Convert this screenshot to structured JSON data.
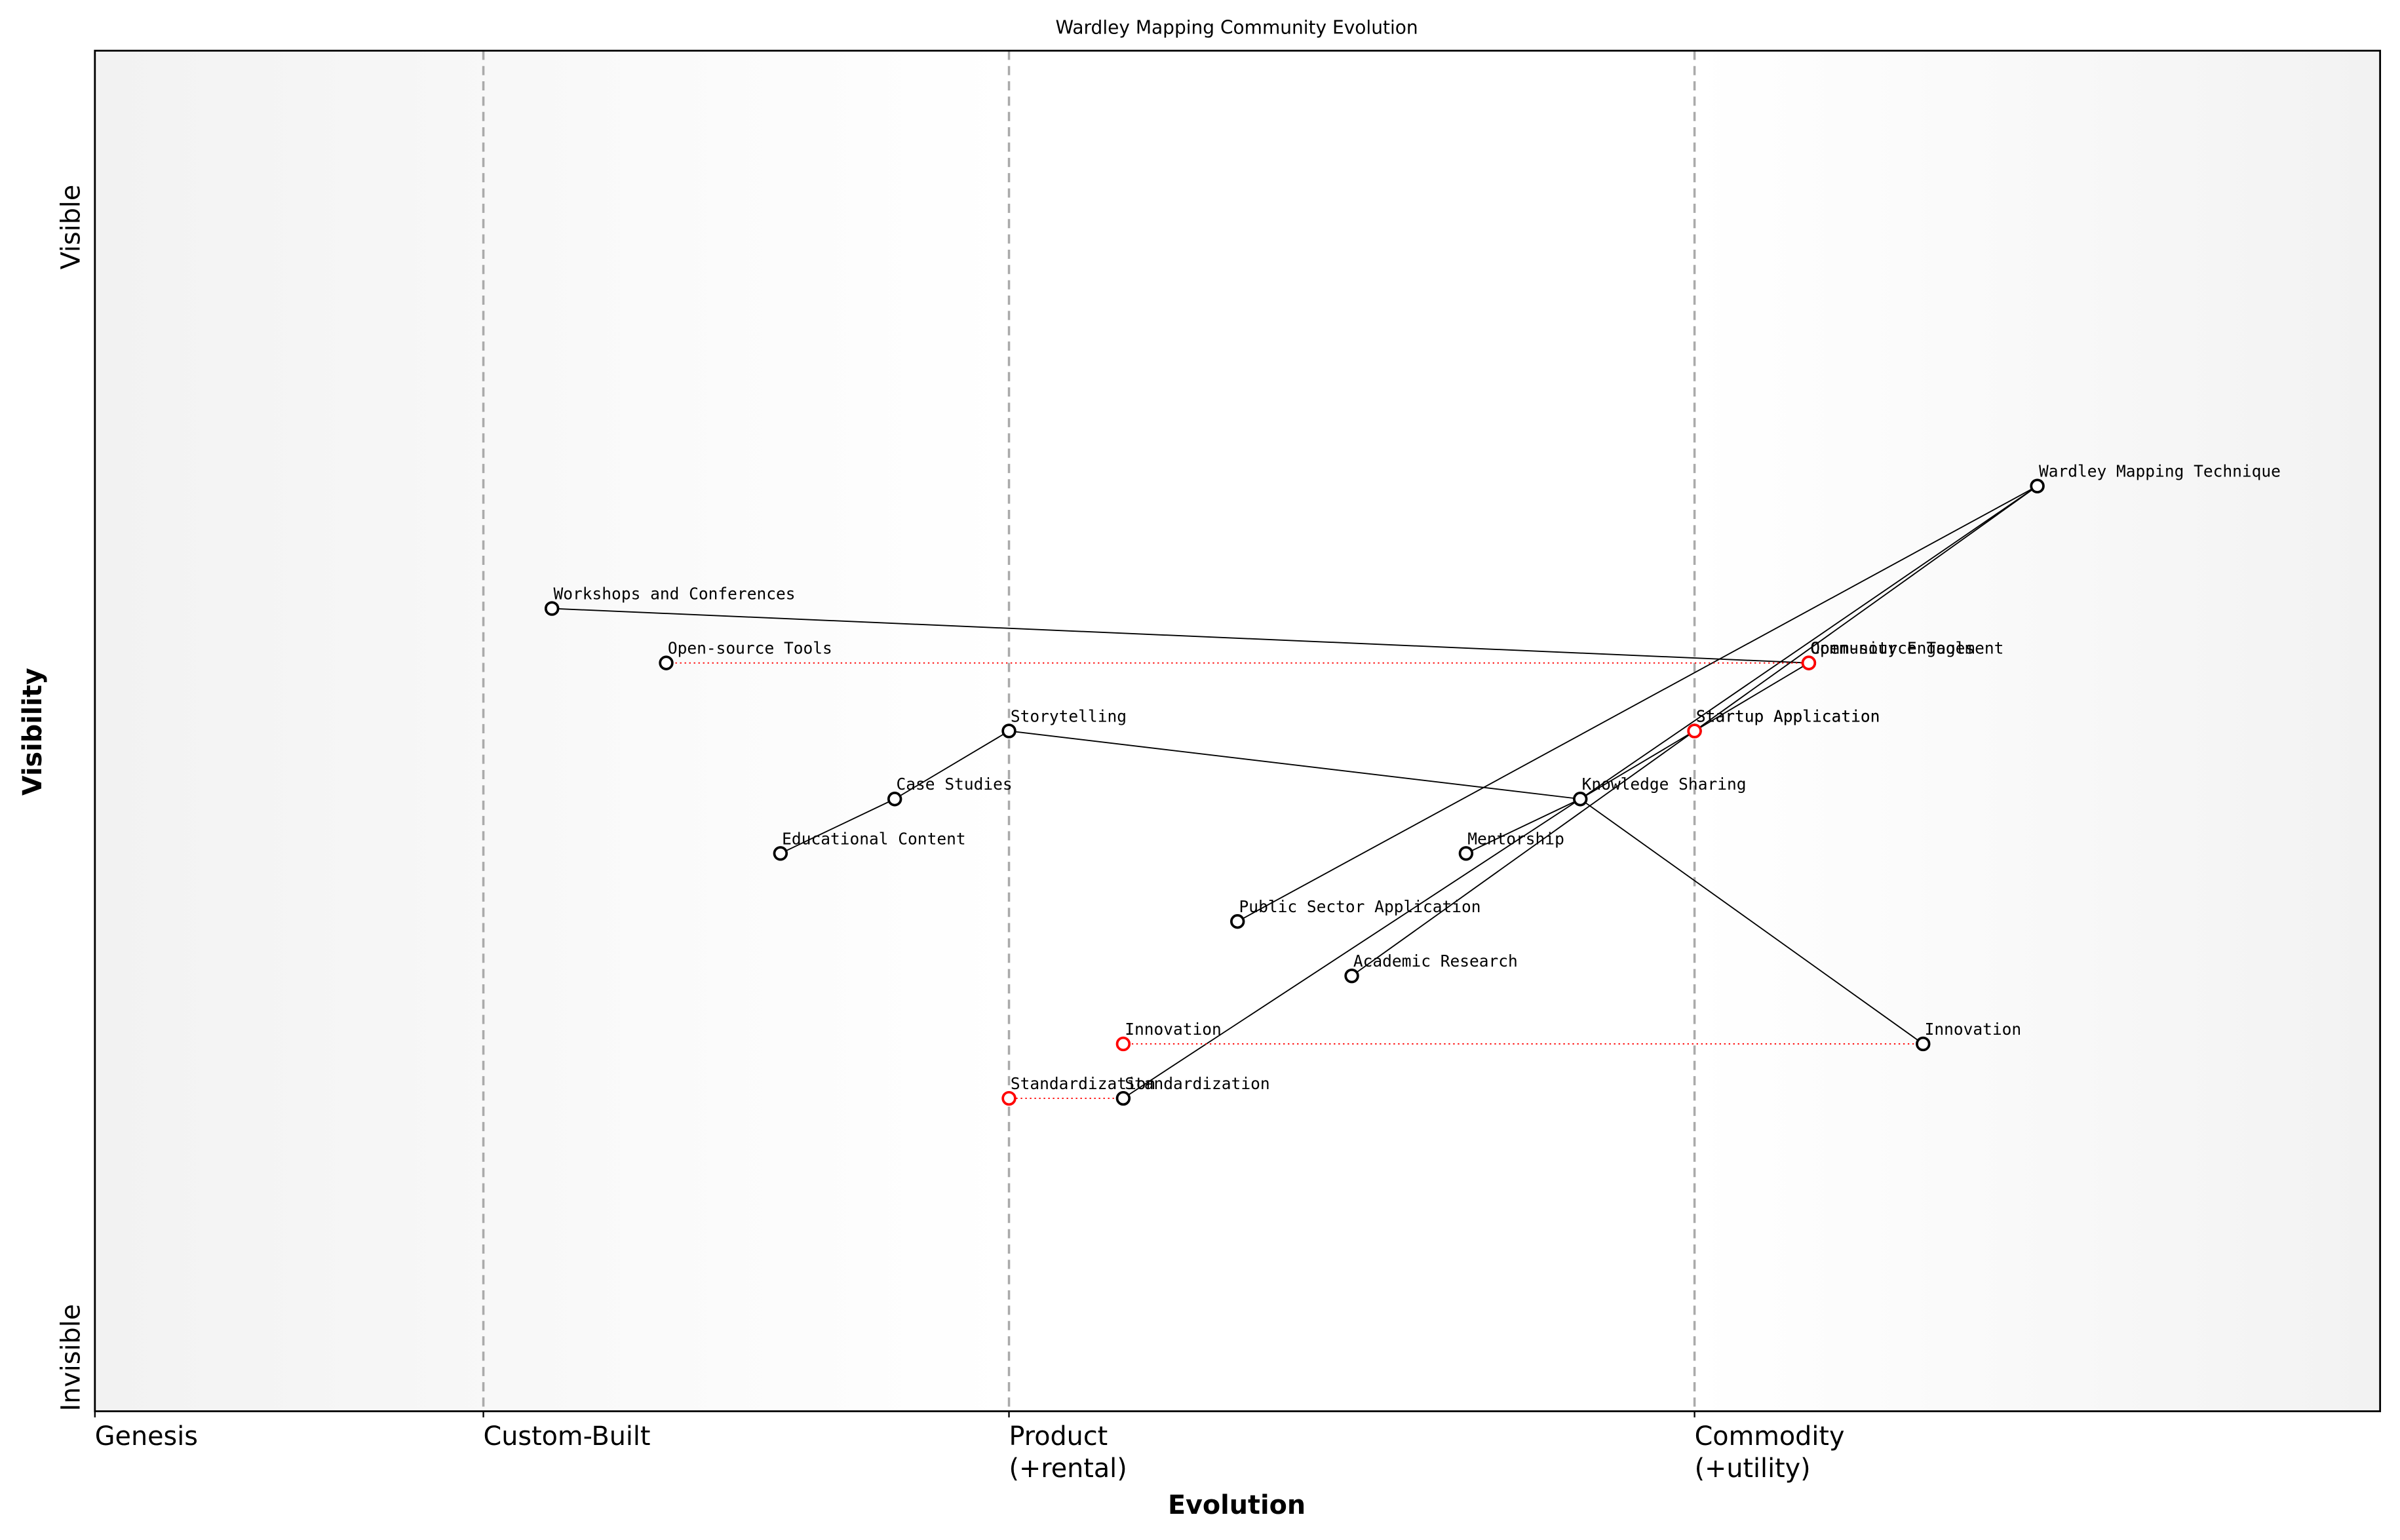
{
  "chart_data": {
    "type": "wardley",
    "title": "Wardley Mapping Community Evolution",
    "x_label": "Evolution",
    "y_label": "Visibility",
    "y_top_label": "Visible",
    "y_bottom_label": "Invisible",
    "xlim": [
      0,
      1
    ],
    "ylim": [
      0,
      1
    ],
    "xticks": [
      {
        "value": 0,
        "label": "Genesis"
      },
      {
        "value": 0.17,
        "label": "Custom-Built"
      },
      {
        "value": 0.4,
        "label": "Product\n(+rental)"
      },
      {
        "value": 0.7,
        "label": "Commodity\n(+utility)"
      }
    ],
    "components": [
      {
        "name": "Wardley Mapping Technique",
        "evolution": 0.85,
        "visibility": 0.68
      },
      {
        "name": "Workshops and Conferences",
        "evolution": 0.2,
        "visibility": 0.59
      },
      {
        "name": "Open-source Tools",
        "evolution": 0.25,
        "visibility": 0.55
      },
      {
        "name": "Community Engagement",
        "evolution": 0.75,
        "visibility": 0.55
      },
      {
        "name": "Storytelling",
        "evolution": 0.4,
        "visibility": 0.5
      },
      {
        "name": "Startup Application",
        "evolution": 0.7,
        "visibility": 0.5
      },
      {
        "name": "Case Studies",
        "evolution": 0.35,
        "visibility": 0.45
      },
      {
        "name": "Knowledge Sharing",
        "evolution": 0.65,
        "visibility": 0.45
      },
      {
        "name": "Educational Content",
        "evolution": 0.3,
        "visibility": 0.41
      },
      {
        "name": "Mentorship",
        "evolution": 0.6,
        "visibility": 0.41
      },
      {
        "name": "Public Sector Application",
        "evolution": 0.5,
        "visibility": 0.36
      },
      {
        "name": "Academic Research",
        "evolution": 0.55,
        "visibility": 0.32
      },
      {
        "name": "Innovation",
        "evolution": 0.8,
        "visibility": 0.27
      },
      {
        "name": "Standardization",
        "evolution": 0.45,
        "visibility": 0.23
      }
    ],
    "links": [
      [
        0,
        10
      ],
      [
        0,
        5
      ],
      [
        5,
        11
      ],
      [
        0,
        7
      ],
      [
        7,
        13
      ],
      [
        3,
        1
      ],
      [
        3,
        7
      ],
      [
        4,
        6
      ],
      [
        6,
        8
      ],
      [
        4,
        7
      ],
      [
        7,
        12
      ],
      [
        9,
        7
      ]
    ],
    "evolve": [
      {
        "component": 2,
        "name": "Open-source Tools",
        "evolution": 0.75
      },
      {
        "component": 5,
        "name": "Startup Application",
        "evolution": 0.7
      },
      {
        "component": 12,
        "name": "Innovation",
        "evolution": 0.45
      },
      {
        "component": 13,
        "name": "Standardization",
        "evolution": 0.4
      }
    ],
    "marker_color": "#000000",
    "evolve_color": "#ff0000"
  }
}
